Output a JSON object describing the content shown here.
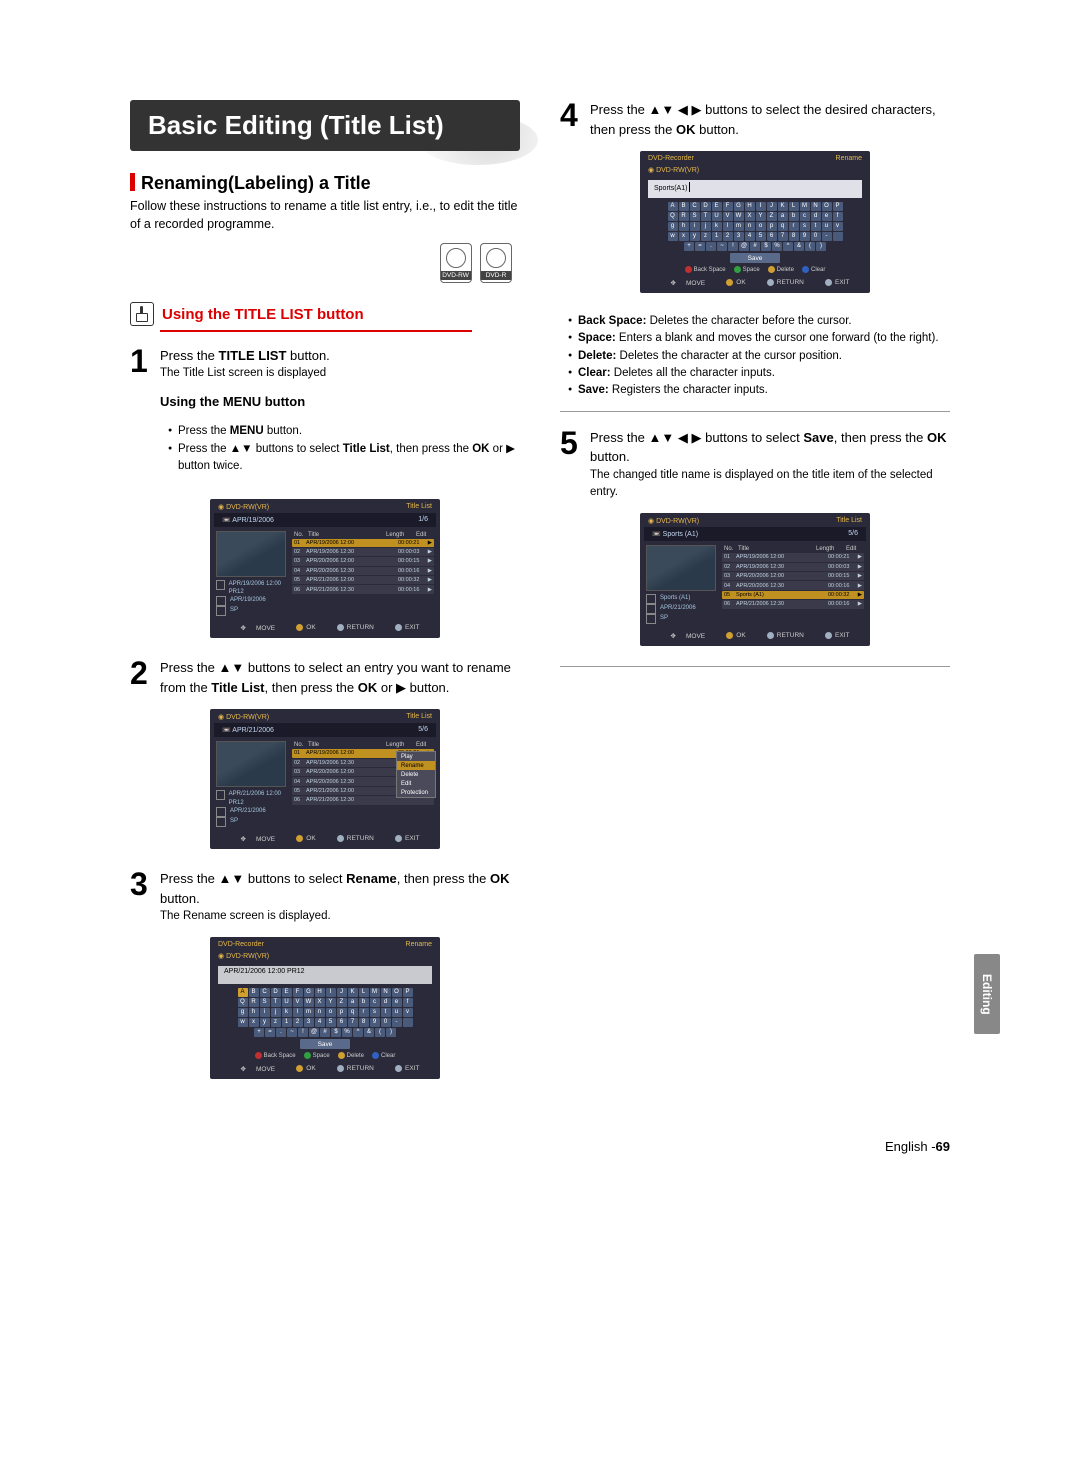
{
  "page": {
    "main_title": "Basic Editing (Title List)",
    "side_tab": "Editing",
    "footer_lang": "English -",
    "footer_page": "69"
  },
  "left": {
    "section_title": "Renaming(Labeling) a Title",
    "intro": "Follow these instructions to rename a title list entry, i.e., to edit the title of a recorded programme.",
    "disc1": "DVD-RW",
    "disc2": "DVD-R",
    "subhead": "Using the TITLE LIST button",
    "step1": {
      "line1a": "Press the ",
      "line1b": "TITLE LIST",
      "line1c": " button.",
      "line2": "The Title List screen is displayed"
    },
    "menu_sub": "Using the MENU button",
    "menu_b1a": "Press the ",
    "menu_b1b": "MENU",
    "menu_b1c": " button.",
    "menu_b2a": "Press the ▲▼ buttons to select ",
    "menu_b2b": "Title List",
    "menu_b2c": ", then press the ",
    "menu_b2d": "OK",
    "menu_b2e": " or ▶ button twice.",
    "step2": {
      "t1": "Press the ▲▼ buttons to select an entry you want to rename from the ",
      "t2": "Title List",
      "t3": ", then press the ",
      "t4": "OK",
      "t5": " or ▶ button."
    },
    "step3": {
      "t1": "Press the ▲▼ buttons to select ",
      "t2": "Rename",
      "t3": ", then press the ",
      "t4": "OK",
      "t5": " button.",
      "sub": "The Rename screen is displayed."
    }
  },
  "right": {
    "step4": {
      "t1": "Press the ▲▼ ◀ ▶ buttons to select the desired characters, then press the ",
      "t2": "OK",
      "t3": " button."
    },
    "notes": {
      "b1_a": "Back Space:",
      "b1_b": " Deletes the character before the cursor.",
      "b2_a": "Space:",
      "b2_b": " Enters a blank and moves the cursor one forward (to the right).",
      "b3_a": "Delete:",
      "b3_b": " Deletes the character at the cursor position.",
      "b4_a": "Clear:",
      "b4_b": " Deletes all the character inputs.",
      "b5_a": "Save:",
      "b5_b": " Registers the character inputs."
    },
    "step5": {
      "t1": "Press the ▲▼ ◀ ▶ buttons to select ",
      "t2": "Save",
      "t3": ", then press the ",
      "t4": "OK",
      "t5": " button.",
      "sub": "The changed title name is displayed on the title item of the selected entry."
    }
  },
  "mock1": {
    "head_l": "DVD-RW(VR)",
    "head_r": "Title List",
    "sub_l": "APR/19/2006",
    "sub_r": "1/6",
    "th": [
      "No.",
      "Title",
      "Length",
      "Edit"
    ],
    "rows": [
      [
        "01",
        "APR/19/2006 12:00",
        "00:00:21",
        "▶"
      ],
      [
        "02",
        "APR/19/2006 12:30",
        "00:00:03",
        "▶"
      ],
      [
        "03",
        "APR/20/2006 12:00",
        "00:00:15",
        "▶"
      ],
      [
        "04",
        "APR/20/2006 12:30",
        "00:00:16",
        "▶"
      ],
      [
        "05",
        "APR/21/2006 12:00",
        "00:00:32",
        "▶"
      ],
      [
        "06",
        "APR/21/2006 12:30",
        "00:00:16",
        "▶"
      ]
    ],
    "info1": "APR/19/2006 12:00 PR12",
    "info2": "APR/19/2006",
    "info3": "SP",
    "foot": [
      "MOVE",
      "OK",
      "RETURN",
      "EXIT"
    ]
  },
  "mock2": {
    "sub_l": "APR/21/2006",
    "sub_r": "5/6",
    "info1": "APR/21/2006 12:00 PR12",
    "info2": "APR/21/2006",
    "popup": [
      "Play",
      "Rename",
      "Delete",
      "Edit",
      "Protection"
    ]
  },
  "mock3": {
    "head_l": "DVD-Recorder",
    "head_r": "Rename",
    "sub": "DVD-RW(VR)",
    "input": "APR/21/2006   12:00 PR12",
    "kb_rows": [
      [
        "A",
        "B",
        "C",
        "D",
        "E",
        "F",
        "G",
        "H",
        "I",
        "J",
        "K",
        "L",
        "M",
        "N",
        "O",
        "P"
      ],
      [
        "Q",
        "R",
        "S",
        "T",
        "U",
        "V",
        "W",
        "X",
        "Y",
        "Z",
        "a",
        "b",
        "c",
        "d",
        "e",
        "f"
      ],
      [
        "g",
        "h",
        "i",
        "j",
        "k",
        "l",
        "m",
        "n",
        "o",
        "p",
        "q",
        "r",
        "s",
        "t",
        "u",
        "v"
      ],
      [
        "w",
        "x",
        "y",
        "z",
        "1",
        "2",
        "3",
        "4",
        "5",
        "6",
        "7",
        "8",
        "9",
        "0",
        "-",
        " "
      ],
      [
        "+",
        "=",
        ".",
        "~",
        "!",
        "@",
        "#",
        "$",
        "%",
        "^",
        "&",
        "(",
        ")"
      ]
    ],
    "save": "Save",
    "actions": [
      "Back Space",
      "Space",
      "Delete",
      "Clear"
    ],
    "foot": [
      "MOVE",
      "OK",
      "RETURN",
      "EXIT"
    ]
  },
  "mock4": {
    "input": "Sports(A1)"
  },
  "mock5": {
    "head_l": "DVD-RW(VR)",
    "head_r": "Title List",
    "sub_l": "Sports (A1)",
    "sub_r": "5/6",
    "info1": "Sports (A1)",
    "info2": "APR/21/2006",
    "rows": [
      [
        "01",
        "APR/19/2006 12:00",
        "00:00:21",
        "▶"
      ],
      [
        "02",
        "APR/19/2006 12:30",
        "00:00:03",
        "▶"
      ],
      [
        "03",
        "APR/20/2006 12:00",
        "00:00:15",
        "▶"
      ],
      [
        "04",
        "APR/20/2006 12:30",
        "00:00:16",
        "▶"
      ],
      [
        "05",
        "Sports (A1)",
        "00:00:32",
        "▶"
      ],
      [
        "06",
        "APR/21/2006 12:30",
        "00:00:16",
        "▶"
      ]
    ]
  }
}
